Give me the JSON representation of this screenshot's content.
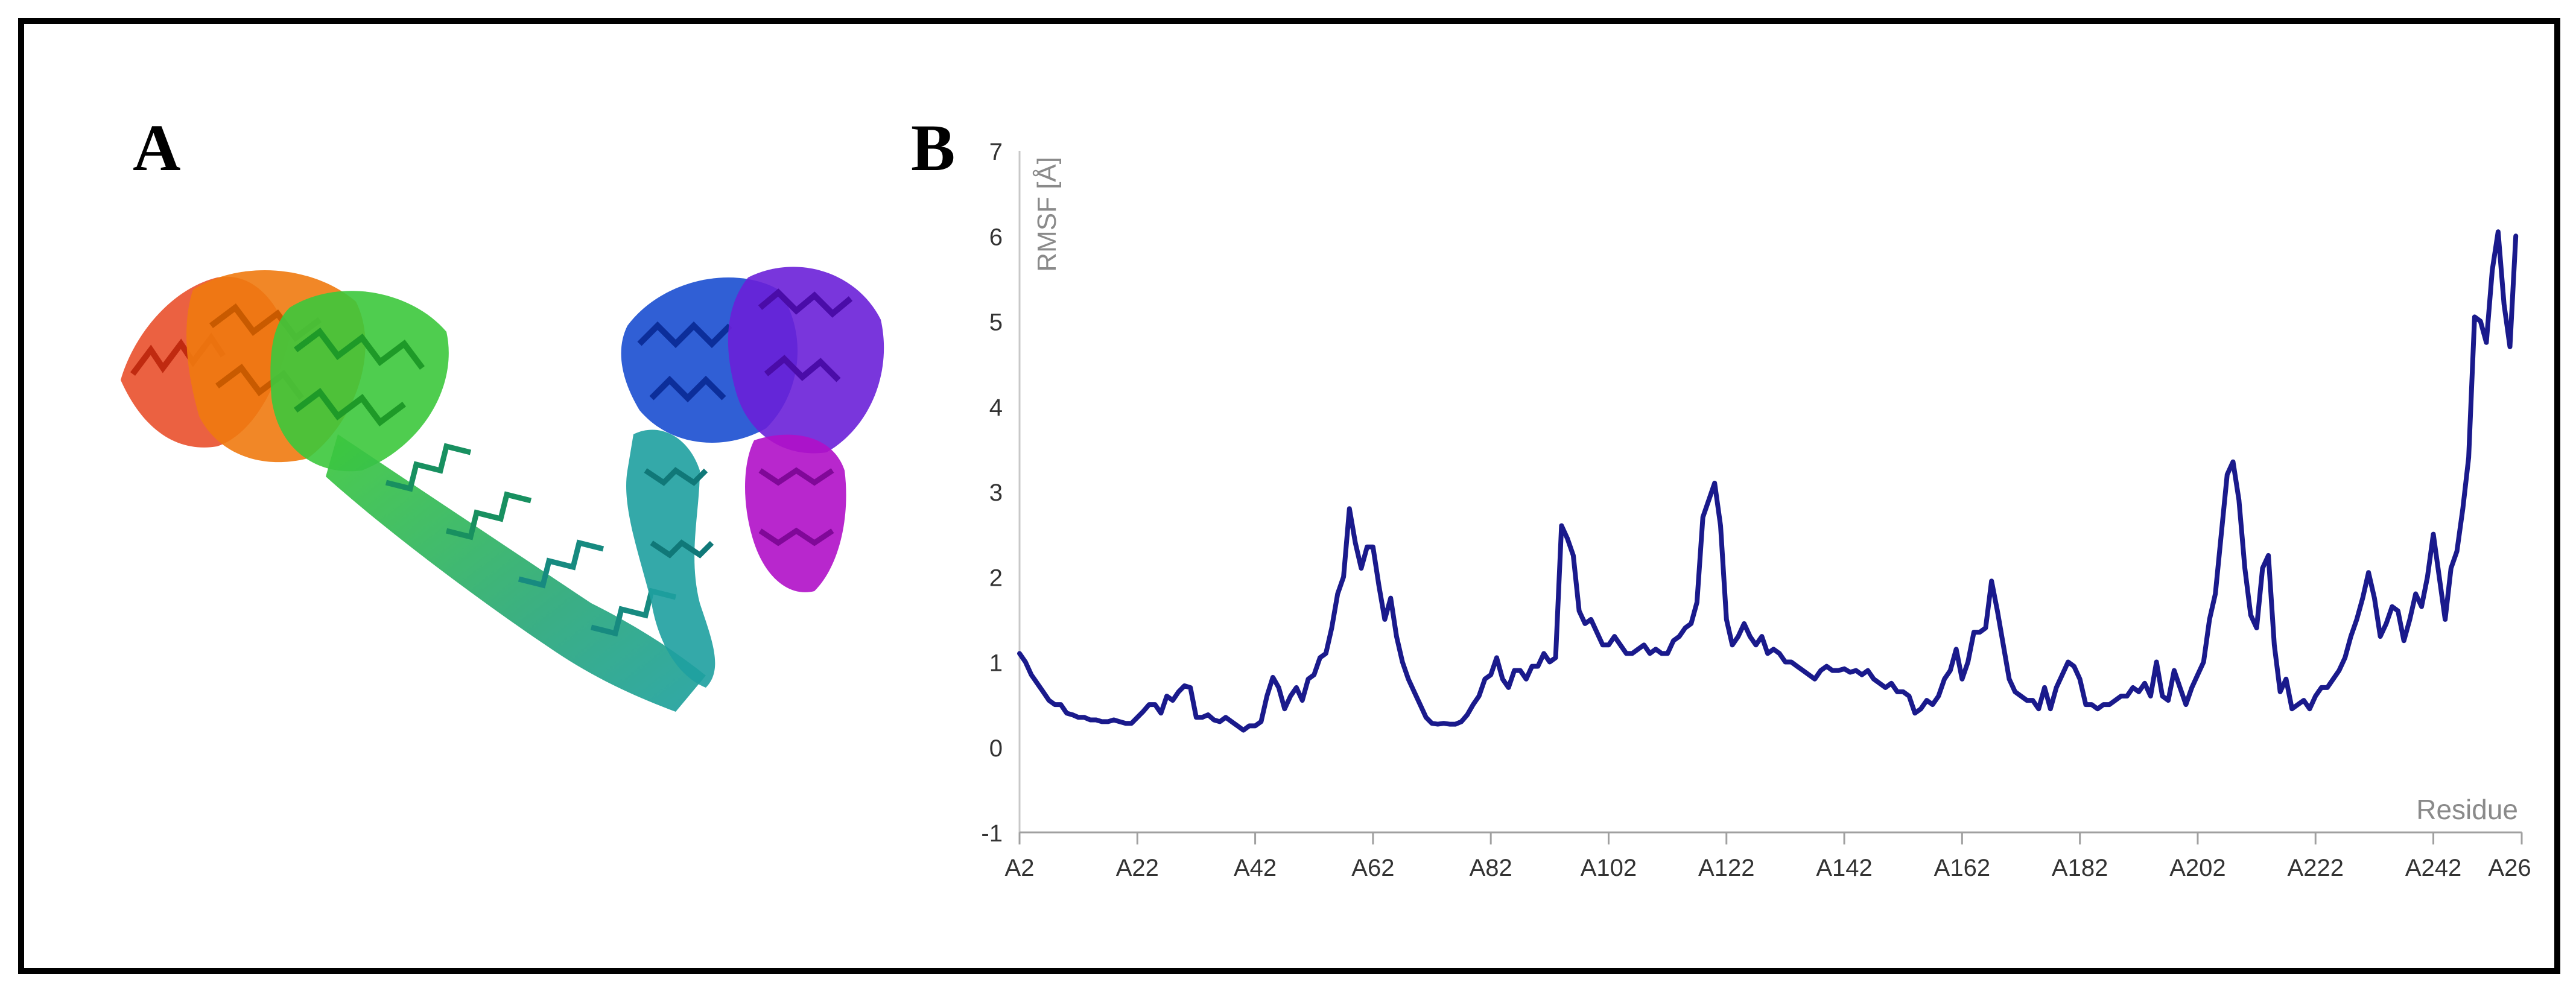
{
  "panels": {
    "a_label": "A",
    "b_label": "B"
  },
  "protein_image": {
    "description_icon": "protein-ribbon-structure-icon",
    "colors": [
      "#e84520",
      "#f07a10",
      "#3cc83c",
      "#2aa878",
      "#1ea0a0",
      "#1a4ed0",
      "#6a20d8",
      "#b010c8"
    ]
  },
  "chart_data": {
    "type": "line",
    "title": "",
    "xlabel": "Residue",
    "ylabel": "RMSF [Å]",
    "ylim": [
      -1,
      7
    ],
    "yticks": [
      "-1",
      "0",
      "1",
      "2",
      "3",
      "4",
      "5",
      "6",
      "7"
    ],
    "xticks": [
      "A2",
      "A22",
      "A42",
      "A62",
      "A82",
      "A102",
      "A122",
      "A142",
      "A162",
      "A182",
      "A202",
      "A222",
      "A242",
      "A26"
    ],
    "line_color": "#1a1a8c",
    "series": [
      {
        "name": "RMSF",
        "points": [
          [
            2,
            1.1
          ],
          [
            3,
            1.0
          ],
          [
            4,
            0.85
          ],
          [
            5,
            0.75
          ],
          [
            6,
            0.65
          ],
          [
            7,
            0.55
          ],
          [
            8,
            0.5
          ],
          [
            9,
            0.5
          ],
          [
            10,
            0.4
          ],
          [
            11,
            0.38
          ],
          [
            12,
            0.35
          ],
          [
            13,
            0.35
          ],
          [
            14,
            0.32
          ],
          [
            15,
            0.32
          ],
          [
            16,
            0.3
          ],
          [
            17,
            0.3
          ],
          [
            18,
            0.32
          ],
          [
            19,
            0.3
          ],
          [
            20,
            0.28
          ],
          [
            21,
            0.28
          ],
          [
            22,
            0.35
          ],
          [
            23,
            0.42
          ],
          [
            24,
            0.5
          ],
          [
            25,
            0.5
          ],
          [
            26,
            0.4
          ],
          [
            27,
            0.6
          ],
          [
            28,
            0.55
          ],
          [
            29,
            0.65
          ],
          [
            30,
            0.72
          ],
          [
            31,
            0.7
          ],
          [
            32,
            0.35
          ],
          [
            33,
            0.35
          ],
          [
            34,
            0.38
          ],
          [
            35,
            0.32
          ],
          [
            36,
            0.3
          ],
          [
            37,
            0.35
          ],
          [
            38,
            0.3
          ],
          [
            39,
            0.25
          ],
          [
            40,
            0.2
          ],
          [
            41,
            0.25
          ],
          [
            42,
            0.25
          ],
          [
            43,
            0.3
          ],
          [
            44,
            0.6
          ],
          [
            45,
            0.82
          ],
          [
            46,
            0.7
          ],
          [
            47,
            0.45
          ],
          [
            48,
            0.6
          ],
          [
            49,
            0.7
          ],
          [
            50,
            0.55
          ],
          [
            51,
            0.8
          ],
          [
            52,
            0.85
          ],
          [
            53,
            1.05
          ],
          [
            54,
            1.1
          ],
          [
            55,
            1.4
          ],
          [
            56,
            1.8
          ],
          [
            57,
            2.0
          ],
          [
            58,
            2.8
          ],
          [
            59,
            2.4
          ],
          [
            60,
            2.1
          ],
          [
            61,
            2.35
          ],
          [
            62,
            2.35
          ],
          [
            63,
            1.9
          ],
          [
            64,
            1.5
          ],
          [
            65,
            1.75
          ],
          [
            66,
            1.3
          ],
          [
            67,
            1.0
          ],
          [
            68,
            0.8
          ],
          [
            69,
            0.65
          ],
          [
            70,
            0.5
          ],
          [
            71,
            0.35
          ],
          [
            72,
            0.28
          ],
          [
            73,
            0.27
          ],
          [
            74,
            0.28
          ],
          [
            75,
            0.27
          ],
          [
            76,
            0.27
          ],
          [
            77,
            0.3
          ],
          [
            78,
            0.38
          ],
          [
            79,
            0.5
          ],
          [
            80,
            0.6
          ],
          [
            81,
            0.8
          ],
          [
            82,
            0.85
          ],
          [
            83,
            1.05
          ],
          [
            84,
            0.8
          ],
          [
            85,
            0.7
          ],
          [
            86,
            0.9
          ],
          [
            87,
            0.9
          ],
          [
            88,
            0.8
          ],
          [
            89,
            0.95
          ],
          [
            90,
            0.95
          ],
          [
            91,
            1.1
          ],
          [
            92,
            1.0
          ],
          [
            93,
            1.05
          ],
          [
            94,
            2.6
          ],
          [
            95,
            2.45
          ],
          [
            96,
            2.25
          ],
          [
            97,
            1.6
          ],
          [
            98,
            1.45
          ],
          [
            99,
            1.5
          ],
          [
            100,
            1.35
          ],
          [
            101,
            1.2
          ],
          [
            102,
            1.2
          ],
          [
            103,
            1.3
          ],
          [
            104,
            1.2
          ],
          [
            105,
            1.1
          ],
          [
            106,
            1.1
          ],
          [
            107,
            1.15
          ],
          [
            108,
            1.2
          ],
          [
            109,
            1.1
          ],
          [
            110,
            1.15
          ],
          [
            111,
            1.1
          ],
          [
            112,
            1.1
          ],
          [
            113,
            1.25
          ],
          [
            114,
            1.3
          ],
          [
            115,
            1.4
          ],
          [
            116,
            1.45
          ],
          [
            117,
            1.7
          ],
          [
            118,
            2.7
          ],
          [
            119,
            2.9
          ],
          [
            120,
            3.1
          ],
          [
            121,
            2.6
          ],
          [
            122,
            1.5
          ],
          [
            123,
            1.2
          ],
          [
            124,
            1.3
          ],
          [
            125,
            1.45
          ],
          [
            126,
            1.3
          ],
          [
            127,
            1.2
          ],
          [
            128,
            1.3
          ],
          [
            129,
            1.1
          ],
          [
            130,
            1.15
          ],
          [
            131,
            1.1
          ],
          [
            132,
            1.0
          ],
          [
            133,
            1.0
          ],
          [
            134,
            0.95
          ],
          [
            135,
            0.9
          ],
          [
            136,
            0.85
          ],
          [
            137,
            0.8
          ],
          [
            138,
            0.9
          ],
          [
            139,
            0.95
          ],
          [
            140,
            0.9
          ],
          [
            141,
            0.9
          ],
          [
            142,
            0.92
          ],
          [
            143,
            0.88
          ],
          [
            144,
            0.9
          ],
          [
            145,
            0.85
          ],
          [
            146,
            0.9
          ],
          [
            147,
            0.8
          ],
          [
            148,
            0.75
          ],
          [
            149,
            0.7
          ],
          [
            150,
            0.75
          ],
          [
            151,
            0.65
          ],
          [
            152,
            0.65
          ],
          [
            153,
            0.6
          ],
          [
            154,
            0.4
          ],
          [
            155,
            0.45
          ],
          [
            156,
            0.55
          ],
          [
            157,
            0.5
          ],
          [
            158,
            0.6
          ],
          [
            159,
            0.8
          ],
          [
            160,
            0.9
          ],
          [
            161,
            1.15
          ],
          [
            162,
            0.8
          ],
          [
            163,
            1.0
          ],
          [
            164,
            1.35
          ],
          [
            165,
            1.35
          ],
          [
            166,
            1.4
          ],
          [
            167,
            1.95
          ],
          [
            168,
            1.6
          ],
          [
            169,
            1.2
          ],
          [
            170,
            0.8
          ],
          [
            171,
            0.65
          ],
          [
            172,
            0.6
          ],
          [
            173,
            0.55
          ],
          [
            174,
            0.55
          ],
          [
            175,
            0.45
          ],
          [
            176,
            0.7
          ],
          [
            177,
            0.45
          ],
          [
            178,
            0.7
          ],
          [
            179,
            0.85
          ],
          [
            180,
            1.0
          ],
          [
            181,
            0.95
          ],
          [
            182,
            0.8
          ],
          [
            183,
            0.5
          ],
          [
            184,
            0.5
          ],
          [
            185,
            0.45
          ],
          [
            186,
            0.5
          ],
          [
            187,
            0.5
          ],
          [
            188,
            0.55
          ],
          [
            189,
            0.6
          ],
          [
            190,
            0.6
          ],
          [
            191,
            0.7
          ],
          [
            192,
            0.65
          ],
          [
            193,
            0.75
          ],
          [
            194,
            0.6
          ],
          [
            195,
            1.0
          ],
          [
            196,
            0.6
          ],
          [
            197,
            0.55
          ],
          [
            198,
            0.9
          ],
          [
            199,
            0.7
          ],
          [
            200,
            0.5
          ],
          [
            201,
            0.7
          ],
          [
            202,
            0.85
          ],
          [
            203,
            1.0
          ],
          [
            204,
            1.5
          ],
          [
            205,
            1.8
          ],
          [
            206,
            2.5
          ],
          [
            207,
            3.2
          ],
          [
            208,
            3.35
          ],
          [
            209,
            2.9
          ],
          [
            210,
            2.1
          ],
          [
            211,
            1.55
          ],
          [
            212,
            1.4
          ],
          [
            213,
            2.1
          ],
          [
            214,
            2.25
          ],
          [
            215,
            1.2
          ],
          [
            216,
            0.65
          ],
          [
            217,
            0.8
          ],
          [
            218,
            0.45
          ],
          [
            219,
            0.5
          ],
          [
            220,
            0.55
          ],
          [
            221,
            0.45
          ],
          [
            222,
            0.6
          ],
          [
            223,
            0.7
          ],
          [
            224,
            0.7
          ],
          [
            225,
            0.8
          ],
          [
            226,
            0.9
          ],
          [
            227,
            1.05
          ],
          [
            228,
            1.3
          ],
          [
            229,
            1.5
          ],
          [
            230,
            1.75
          ],
          [
            231,
            2.05
          ],
          [
            232,
            1.75
          ],
          [
            233,
            1.3
          ],
          [
            234,
            1.45
          ],
          [
            235,
            1.65
          ],
          [
            236,
            1.6
          ],
          [
            237,
            1.25
          ],
          [
            238,
            1.5
          ],
          [
            239,
            1.8
          ],
          [
            240,
            1.65
          ],
          [
            241,
            2.0
          ],
          [
            242,
            2.5
          ],
          [
            243,
            2.0
          ],
          [
            244,
            1.5
          ],
          [
            245,
            2.1
          ],
          [
            246,
            2.3
          ],
          [
            247,
            2.8
          ],
          [
            248,
            3.4
          ],
          [
            249,
            5.05
          ],
          [
            250,
            5.0
          ],
          [
            251,
            4.75
          ],
          [
            252,
            5.6
          ],
          [
            253,
            6.05
          ],
          [
            254,
            5.2
          ],
          [
            255,
            4.7
          ],
          [
            256,
            6.0
          ]
        ]
      }
    ]
  }
}
